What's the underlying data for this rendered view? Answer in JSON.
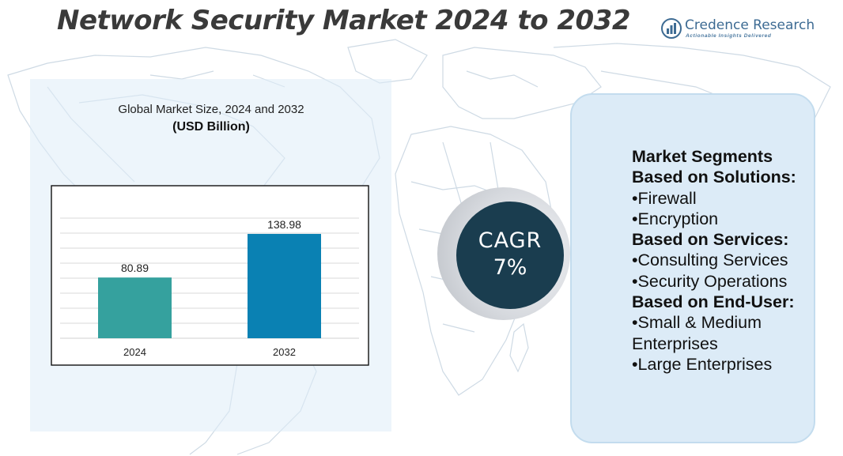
{
  "title": "Network Security Market 2024 to 2032",
  "brand": {
    "name": "Credence Research",
    "tagline": "Actionable Insights Delivered",
    "color": "#3d6b93"
  },
  "chart": {
    "subtitle": "Global Market Size, 2024 and 2032",
    "unit": "(USD Billion)"
  },
  "chart_data": {
    "type": "bar",
    "categories": [
      "2024",
      "2032"
    ],
    "values": [
      80.89,
      138.98
    ],
    "value_labels": [
      "80.89",
      "138.98"
    ],
    "colors": [
      "#35a19e",
      "#0a81b3"
    ],
    "title": "Global Market Size, 2024 and 2032",
    "ylabel": "(USD Billion)",
    "xlabel": "",
    "ylim": [
      0,
      160
    ],
    "grid": true,
    "legend": "none"
  },
  "cagr": {
    "label": "CAGR",
    "value": "7%",
    "color": "#1a3d4f"
  },
  "segments": {
    "lines": [
      {
        "text": "Market Segments",
        "heading": true
      },
      {
        "text": "Based on Solutions:",
        "heading": true
      },
      {
        "text": "•Firewall",
        "heading": false
      },
      {
        "text": "•Encryption",
        "heading": false
      },
      {
        "text": "Based on Services:",
        "heading": true
      },
      {
        "text": "•Consulting Services",
        "heading": false
      },
      {
        "text": "•Security Operations",
        "heading": false
      },
      {
        "text": "Based on End-User:",
        "heading": true
      },
      {
        "text": "•Small & Medium",
        "heading": false
      },
      {
        "text": "Enterprises",
        "heading": false
      },
      {
        "text": "•Large Enterprises",
        "heading": false
      }
    ]
  }
}
